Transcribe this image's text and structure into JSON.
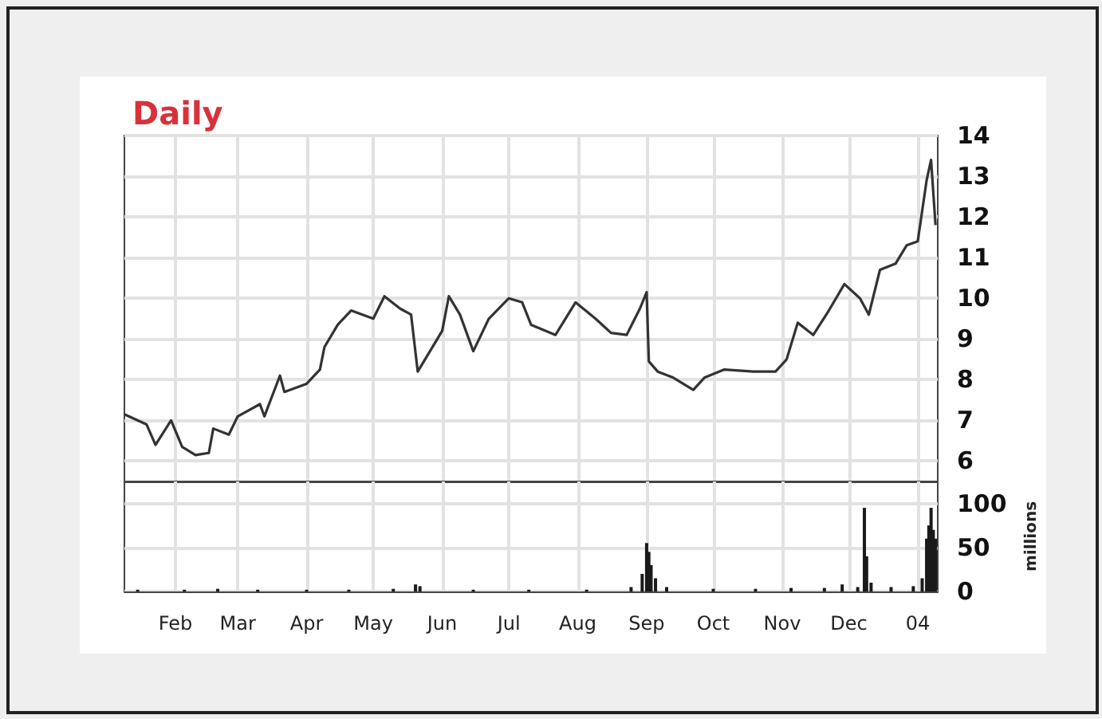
{
  "chart_data": [
    {
      "type": "line",
      "title": "Daily",
      "tick_labels": "y",
      "grid": true,
      "x": [
        "2003-01-09",
        "2003-01-19",
        "2003-01-23",
        "2003-01-30",
        "2003-02-04",
        "2003-02-10",
        "2003-02-16",
        "2003-02-18",
        "2003-02-25",
        "2003-03-01",
        "2003-03-11",
        "2003-03-13",
        "2003-03-20",
        "2003-03-22",
        "2003-04-01",
        "2003-04-07",
        "2003-04-09",
        "2003-04-15",
        "2003-04-21",
        "2003-05-01",
        "2003-05-06",
        "2003-05-13",
        "2003-05-18",
        "2003-05-21",
        "2003-06-01",
        "2003-06-04",
        "2003-06-09",
        "2003-06-15",
        "2003-06-22",
        "2003-07-01",
        "2003-07-07",
        "2003-07-11",
        "2003-07-22",
        "2003-07-31",
        "2003-08-09",
        "2003-08-16",
        "2003-08-23",
        "2003-08-29",
        "2003-09-01",
        "2003-09-02",
        "2003-09-06",
        "2003-09-13",
        "2003-09-22",
        "2003-09-27",
        "2003-10-06",
        "2003-10-19",
        "2003-10-29",
        "2003-11-03",
        "2003-11-08",
        "2003-11-15",
        "2003-11-22",
        "2003-11-29",
        "2003-12-06",
        "2003-12-10",
        "2003-12-15",
        "2003-12-22",
        "2003-12-27",
        "2004-01-01",
        "2004-01-05",
        "2004-01-07",
        "2004-01-09"
      ],
      "series": [
        {
          "color": "#333333",
          "values": [
            7.15,
            6.9,
            6.4,
            7.0,
            6.35,
            6.15,
            6.2,
            6.8,
            6.65,
            7.1,
            7.4,
            7.1,
            8.1,
            7.7,
            7.9,
            8.25,
            8.8,
            9.35,
            9.7,
            9.5,
            10.05,
            9.75,
            9.6,
            8.2,
            9.2,
            10.05,
            9.6,
            8.7,
            9.5,
            10.0,
            9.9,
            9.35,
            9.1,
            9.9,
            9.5,
            9.15,
            9.1,
            9.75,
            10.15,
            8.45,
            8.2,
            8.05,
            7.75,
            8.05,
            8.25,
            8.2,
            8.2,
            8.5,
            9.4,
            9.1,
            9.7,
            10.35,
            10.0,
            9.6,
            10.7,
            10.85,
            11.3,
            11.4,
            12.9,
            13.4,
            11.8
          ]
        }
      ],
      "xlim": [
        "2003-01-09",
        "2004-01-10"
      ],
      "xticks": [
        {
          "value": "2003-02-01",
          "label": null
        },
        {
          "value": "2003-03-01",
          "label": null
        },
        {
          "value": "2003-04-01",
          "label": null
        },
        {
          "value": "2003-05-01",
          "label": null
        },
        {
          "value": "2003-06-01",
          "label": null
        },
        {
          "value": "2003-07-01",
          "label": null
        },
        {
          "value": "2003-08-01",
          "label": null
        },
        {
          "value": "2003-09-01",
          "label": null
        },
        {
          "value": "2003-10-01",
          "label": null
        },
        {
          "value": "2003-11-01",
          "label": null
        },
        {
          "value": "2003-12-01",
          "label": null
        },
        {
          "value": "2004-01-01",
          "label": null
        }
      ],
      "ylim": [
        5.5,
        14
      ],
      "yticks": [
        6,
        7,
        8,
        9,
        10,
        11,
        12,
        13,
        14
      ]
    },
    {
      "type": "bar",
      "ylabel": "millions",
      "grid": true,
      "x": [
        "2003-01-15",
        "2003-02-05",
        "2003-02-20",
        "2003-03-10",
        "2003-04-01",
        "2003-04-20",
        "2003-05-10",
        "2003-05-20",
        "2003-05-22",
        "2003-06-15",
        "2003-07-10",
        "2003-08-05",
        "2003-08-25",
        "2003-08-30",
        "2003-09-01",
        "2003-09-02",
        "2003-09-03",
        "2003-09-05",
        "2003-09-10",
        "2003-10-01",
        "2003-10-20",
        "2003-11-05",
        "2003-11-20",
        "2003-11-28",
        "2003-12-05",
        "2003-12-08",
        "2003-12-09",
        "2003-12-11",
        "2003-12-20",
        "2003-12-30",
        "2004-01-03",
        "2004-01-05",
        "2004-01-06",
        "2004-01-07",
        "2004-01-08",
        "2004-01-09"
      ],
      "series": [
        {
          "color": "#1a1a1a",
          "values": [
            2,
            2,
            3,
            2,
            2,
            2,
            3,
            8,
            6,
            2,
            2,
            2,
            5,
            20,
            55,
            45,
            30,
            15,
            5,
            3,
            3,
            4,
            4,
            8,
            5,
            95,
            40,
            10,
            5,
            6,
            15,
            60,
            75,
            95,
            70,
            60
          ]
        }
      ],
      "xlim": [
        "2003-01-09",
        "2004-01-10"
      ],
      "xticks": [
        {
          "value": "2003-02-01",
          "label": "Feb"
        },
        {
          "value": "2003-03-01",
          "label": "Mar"
        },
        {
          "value": "2003-04-01",
          "label": "Apr"
        },
        {
          "value": "2003-05-01",
          "label": "May"
        },
        {
          "value": "2003-06-01",
          "label": "Jun"
        },
        {
          "value": "2003-07-01",
          "label": "Jul"
        },
        {
          "value": "2003-08-01",
          "label": "Aug"
        },
        {
          "value": "2003-09-01",
          "label": "Sep"
        },
        {
          "value": "2003-10-01",
          "label": "Oct"
        },
        {
          "value": "2003-11-01",
          "label": "Nov"
        },
        {
          "value": "2003-12-01",
          "label": "Dec"
        },
        {
          "value": "2004-01-01",
          "label": "04"
        }
      ],
      "ylim": [
        0,
        125
      ],
      "yticks": [
        0,
        50,
        100
      ]
    }
  ]
}
